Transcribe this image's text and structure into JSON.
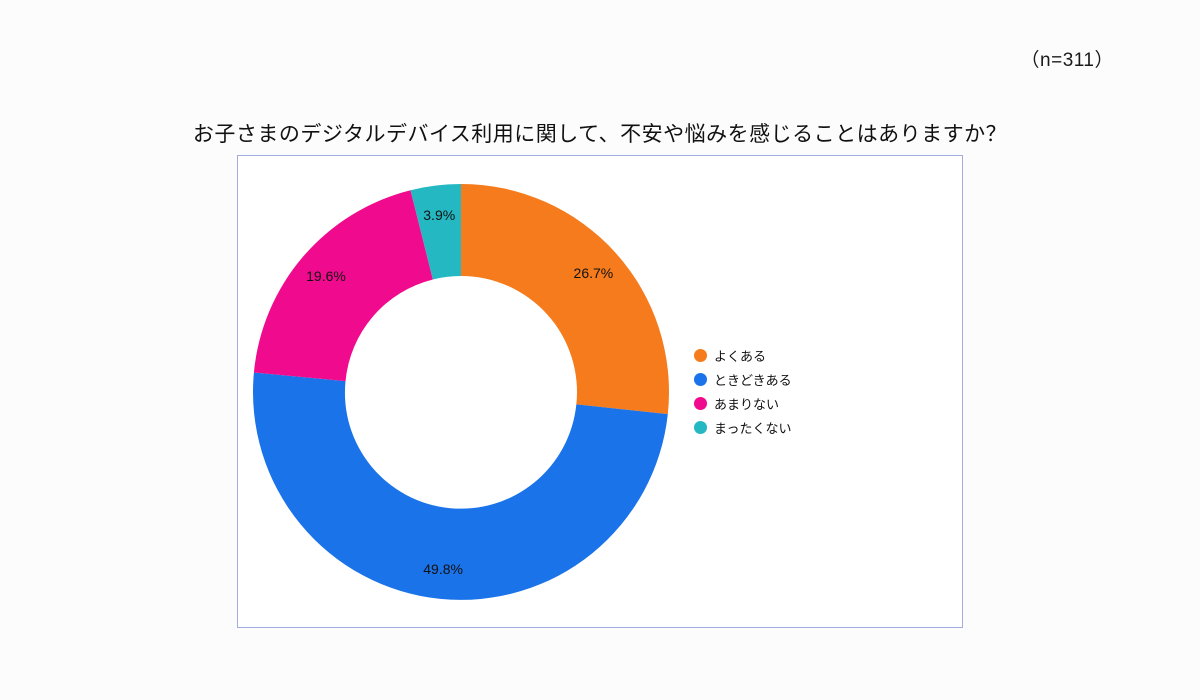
{
  "header": {
    "sample_note": "（n=311）"
  },
  "chart": {
    "title": "お子さまのデジタルデバイス利用に関して、不安や悩みを感じることはありますか？"
  },
  "chart_data": {
    "type": "pie",
    "subtype": "donut",
    "title": "お子さまのデジタルデバイス利用に関して、不安や悩みを感じることはありますか？",
    "sample_size": 311,
    "categories": [
      "よくある",
      "ときどきある",
      "あまりない",
      "まったくない"
    ],
    "values": [
      26.7,
      49.8,
      19.6,
      3.9
    ],
    "labels": [
      "26.7%",
      "49.8%",
      "19.6%",
      "3.9%"
    ],
    "colors": [
      "#f57b1c",
      "#1a73e8",
      "#f00a8d",
      "#24b8c2"
    ],
    "start_angle_deg": 0,
    "direction": "clockwise",
    "donut_hole_ratio": 0.56,
    "legend_position": "right",
    "grid": false
  }
}
